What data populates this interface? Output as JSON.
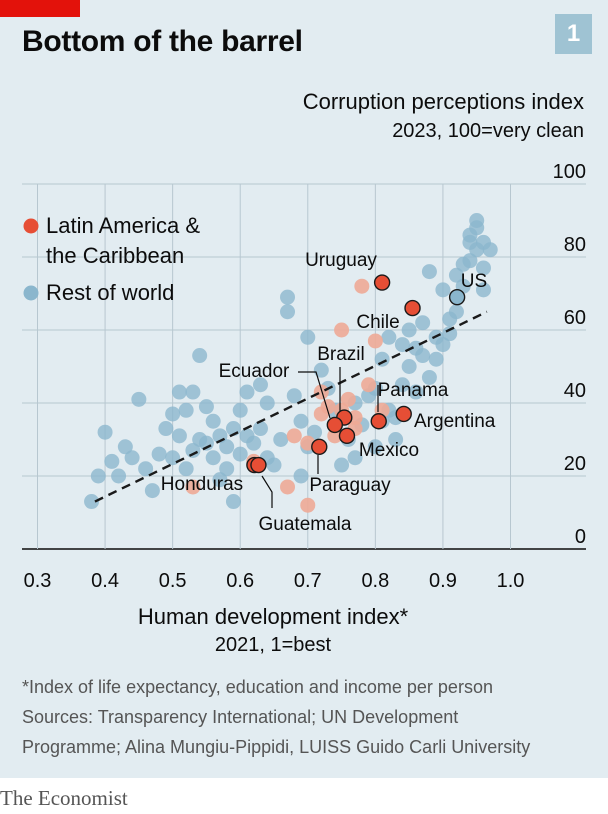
{
  "header": {
    "title": "Bottom of the barrel",
    "chart_number": "1"
  },
  "footer": {
    "note": "*Index of life expectancy, education and income per person",
    "sources_line1": "Sources: Transparency International; UN Development",
    "sources_line2": "Programme; Alina Mungiu-Pippidi, LUISS Guido Carli University",
    "brand": "The Economist"
  },
  "colors": {
    "latam": "#e64e35",
    "latam_faded": "#eeaa96",
    "rest": "#8ab6cd",
    "accent": "#e3120b",
    "background": "#e2ecf1"
  },
  "chart_data": {
    "type": "scatter",
    "title": "Bottom of the barrel",
    "ylabel": "Corruption perceptions index",
    "ylabel_sub": "2023, 100=very clean",
    "xlabel": "Human development index*",
    "xlabel_sub": "2021, 1=best",
    "xlim": [
      0.3,
      1.0
    ],
    "ylim": [
      0,
      100
    ],
    "x_ticks": [
      0.3,
      0.4,
      0.5,
      0.6,
      0.7,
      0.8,
      0.9,
      1.0
    ],
    "x_tick_labels": [
      "0.3",
      "0.4",
      "0.5",
      "0.6",
      "0.7",
      "0.8",
      "0.9",
      "1.0"
    ],
    "y_ticks": [
      0,
      20,
      40,
      60,
      80,
      100
    ],
    "y_tick_labels": [
      "0",
      "20",
      "40",
      "60",
      "80",
      "100"
    ],
    "grid": true,
    "legend": {
      "position": "top-left",
      "entries": [
        {
          "label_line1": "Latin America &",
          "label_line2": "the Caribbean",
          "color": "#e64e35"
        },
        {
          "label_line1": "Rest of world",
          "label_line2": "",
          "color": "#8ab6cd"
        }
      ]
    },
    "trend_line": {
      "style": "dashed",
      "from": [
        0.385,
        13
      ],
      "to": [
        0.965,
        65
      ]
    },
    "series": [
      {
        "name": "Rest of world",
        "color": "#8ab6cd",
        "points": [
          [
            0.38,
            13
          ],
          [
            0.39,
            20
          ],
          [
            0.4,
            32
          ],
          [
            0.41,
            24
          ],
          [
            0.42,
            20
          ],
          [
            0.43,
            28
          ],
          [
            0.44,
            25
          ],
          [
            0.45,
            41
          ],
          [
            0.46,
            22
          ],
          [
            0.47,
            16
          ],
          [
            0.48,
            26
          ],
          [
            0.49,
            33
          ],
          [
            0.5,
            37
          ],
          [
            0.5,
            25
          ],
          [
            0.51,
            31
          ],
          [
            0.51,
            43
          ],
          [
            0.52,
            22
          ],
          [
            0.52,
            38
          ],
          [
            0.53,
            27
          ],
          [
            0.53,
            43
          ],
          [
            0.54,
            30
          ],
          [
            0.54,
            53
          ],
          [
            0.55,
            29
          ],
          [
            0.55,
            39
          ],
          [
            0.56,
            35
          ],
          [
            0.56,
            25
          ],
          [
            0.57,
            31
          ],
          [
            0.57,
            19
          ],
          [
            0.58,
            28
          ],
          [
            0.58,
            22
          ],
          [
            0.59,
            33
          ],
          [
            0.59,
            13
          ],
          [
            0.6,
            38
          ],
          [
            0.6,
            26
          ],
          [
            0.61,
            43
          ],
          [
            0.61,
            31
          ],
          [
            0.62,
            29
          ],
          [
            0.63,
            45
          ],
          [
            0.63,
            33
          ],
          [
            0.64,
            25
          ],
          [
            0.64,
            40
          ],
          [
            0.65,
            23
          ],
          [
            0.66,
            30
          ],
          [
            0.67,
            65
          ],
          [
            0.67,
            69
          ],
          [
            0.68,
            42
          ],
          [
            0.69,
            20
          ],
          [
            0.69,
            35
          ],
          [
            0.7,
            28
          ],
          [
            0.7,
            58
          ],
          [
            0.71,
            32
          ],
          [
            0.72,
            49
          ],
          [
            0.73,
            44
          ],
          [
            0.74,
            38
          ],
          [
            0.75,
            23
          ],
          [
            0.76,
            30
          ],
          [
            0.77,
            40
          ],
          [
            0.77,
            25
          ],
          [
            0.78,
            34
          ],
          [
            0.79,
            42
          ],
          [
            0.8,
            44
          ],
          [
            0.8,
            28
          ],
          [
            0.81,
            35
          ],
          [
            0.81,
            52
          ],
          [
            0.82,
            38
          ],
          [
            0.82,
            58
          ],
          [
            0.83,
            36
          ],
          [
            0.83,
            30
          ],
          [
            0.84,
            45
          ],
          [
            0.84,
            56
          ],
          [
            0.85,
            50
          ],
          [
            0.85,
            60
          ],
          [
            0.86,
            43
          ],
          [
            0.86,
            55
          ],
          [
            0.87,
            62
          ],
          [
            0.87,
            53
          ],
          [
            0.88,
            47
          ],
          [
            0.88,
            76
          ],
          [
            0.89,
            58
          ],
          [
            0.89,
            52
          ],
          [
            0.9,
            71
          ],
          [
            0.9,
            56
          ],
          [
            0.91,
            63
          ],
          [
            0.91,
            59
          ],
          [
            0.92,
            65
          ],
          [
            0.92,
            75
          ],
          [
            0.93,
            78
          ],
          [
            0.93,
            72
          ],
          [
            0.94,
            84
          ],
          [
            0.94,
            86
          ],
          [
            0.94,
            79
          ],
          [
            0.95,
            88
          ],
          [
            0.95,
            82
          ],
          [
            0.95,
            90
          ],
          [
            0.96,
            77
          ],
          [
            0.96,
            84
          ],
          [
            0.96,
            71
          ],
          [
            0.97,
            82
          ]
        ]
      },
      {
        "name": "Latin America & the Caribbean (unlabelled)",
        "color": "#eeaa96",
        "points": [
          [
            0.53,
            17
          ],
          [
            0.62,
            24
          ],
          [
            0.67,
            17
          ],
          [
            0.68,
            31
          ],
          [
            0.7,
            29
          ],
          [
            0.7,
            12
          ],
          [
            0.72,
            43
          ],
          [
            0.72,
            37
          ],
          [
            0.73,
            39
          ],
          [
            0.74,
            31
          ],
          [
            0.75,
            60
          ],
          [
            0.75,
            38
          ],
          [
            0.76,
            41
          ],
          [
            0.77,
            33
          ],
          [
            0.77,
            36
          ],
          [
            0.78,
            72
          ],
          [
            0.79,
            45
          ],
          [
            0.8,
            57
          ],
          [
            0.81,
            38
          ]
        ]
      },
      {
        "name": "Labelled countries",
        "points": [
          {
            "label": "Uruguay",
            "x": 0.81,
            "y": 73,
            "group": "latam"
          },
          {
            "label": "Chile",
            "x": 0.855,
            "y": 66,
            "group": "latam"
          },
          {
            "label": "US",
            "x": 0.921,
            "y": 69,
            "group": "rest"
          },
          {
            "label": "Brazil",
            "x": 0.754,
            "y": 36,
            "group": "latam"
          },
          {
            "label": "Ecuador",
            "x": 0.74,
            "y": 34,
            "group": "latam"
          },
          {
            "label": "Panama",
            "x": 0.805,
            "y": 35,
            "group": "latam"
          },
          {
            "label": "Argentina",
            "x": 0.842,
            "y": 37,
            "group": "latam"
          },
          {
            "label": "Mexico",
            "x": 0.758,
            "y": 31,
            "group": "latam"
          },
          {
            "label": "Paraguay",
            "x": 0.717,
            "y": 28,
            "group": "latam"
          },
          {
            "label": "Honduras",
            "x": 0.621,
            "y": 23,
            "group": "latam"
          },
          {
            "label": "Guatemala",
            "x": 0.627,
            "y": 23,
            "group": "latam"
          }
        ]
      }
    ]
  }
}
